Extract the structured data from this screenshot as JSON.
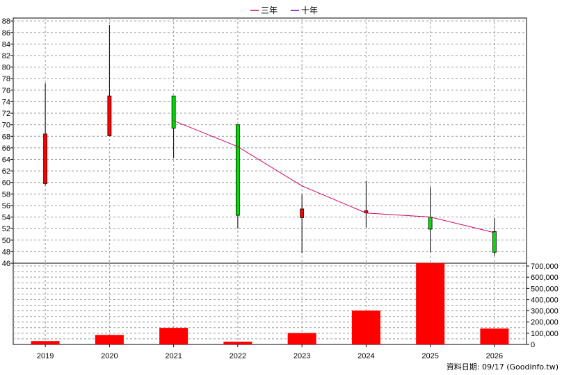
{
  "chart_data": {
    "type": "candlestick",
    "title": "",
    "legend": {
      "placement": "top-center",
      "entries": [
        {
          "label": "三年",
          "color": "#cc0066"
        },
        {
          "label": "十年",
          "color": "#6600cc"
        }
      ]
    },
    "categories": [
      "2019",
      "2020",
      "2021",
      "2022",
      "2023",
      "2024",
      "2025",
      "2026"
    ],
    "price_axis": {
      "ylim": [
        46,
        88.5
      ],
      "ticks": [
        46,
        48,
        50,
        52,
        54,
        56,
        58,
        60,
        62,
        64,
        66,
        68,
        70,
        72,
        74,
        76,
        78,
        80,
        82,
        84,
        86,
        88
      ],
      "grid": true
    },
    "candles": [
      {
        "x": "2019",
        "open": 59.8,
        "high": 77.2,
        "low": 59.5,
        "close": 68.4
      },
      {
        "x": "2020",
        "open": 68.1,
        "high": 87.3,
        "low": 68.0,
        "close": 75.0
      },
      {
        "x": "2021",
        "open": 75.0,
        "high": 75.0,
        "low": 64.2,
        "close": 69.4
      },
      {
        "x": "2022",
        "open": 70.0,
        "high": 70.0,
        "low": 52.0,
        "close": 54.3
      },
      {
        "x": "2023",
        "open": 53.9,
        "high": 57.9,
        "low": 47.8,
        "close": 55.4
      },
      {
        "x": "2024",
        "open": 54.7,
        "high": 60.3,
        "low": 52.2,
        "close": 55.1
      },
      {
        "x": "2025",
        "open": 54.0,
        "high": 59.2,
        "low": 47.9,
        "close": 51.9
      },
      {
        "x": "2026",
        "open": 51.5,
        "high": 53.8,
        "low": 47.3,
        "close": 47.9
      }
    ],
    "colors": {
      "up": "#ff0000",
      "down": "#00dd00",
      "wick": "#000000",
      "grid": "#999999"
    },
    "series": [
      {
        "name": "三年",
        "color": "#cc0066",
        "points": [
          {
            "x": "2021",
            "y": 70.7
          },
          {
            "x": "2022",
            "y": 66.2
          },
          {
            "x": "2023",
            "y": 59.4
          },
          {
            "x": "2024",
            "y": 54.7
          },
          {
            "x": "2025",
            "y": 54.0
          },
          {
            "x": "2026",
            "y": 51.3
          }
        ]
      }
    ],
    "volume": {
      "ylim": [
        0,
        725000
      ],
      "ticks": [
        0,
        100000,
        200000,
        300000,
        400000,
        500000,
        600000,
        700000
      ],
      "tick_labels": [
        "0",
        "100,000",
        "200,000",
        "300,000",
        "400,000",
        "500,000",
        "600,000",
        "700,000"
      ],
      "values": [
        30000,
        85000,
        148000,
        25000,
        102000,
        302000,
        728000,
        142000
      ],
      "color": "#ff0000"
    },
    "footer": "資料日期: 09/17  (Goodinfo.tw)"
  }
}
